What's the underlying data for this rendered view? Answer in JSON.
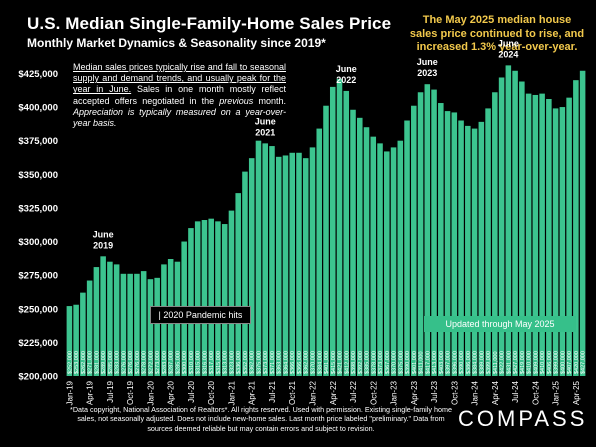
{
  "header": {
    "title": "U.S. Median Single-Family-Home Sales Price",
    "subtitle": "Monthly Market Dynamics & Seasonality since 2019*"
  },
  "callout": "The May   2025 median house sales price continued to rise, and increased 1.3% year-over-year.",
  "note": {
    "part1": "Median sales prices typically rise and fall to seasonal supply and demand trends, and usually peak for the year in June.",
    "part2": " Sales in one month mostly reflect accepted offers negotiated in the ",
    "part3": "previous",
    "part4": " month. ",
    "part5": "Appreciation is typically measured on a year-over-year basis."
  },
  "annotations": {
    "june2019": [
      "June",
      "2019"
    ],
    "june2021": [
      "June",
      "2021"
    ],
    "june2022": [
      "June",
      "2022"
    ],
    "june2023": [
      "June",
      "2023"
    ],
    "june2024": [
      "June",
      "2024"
    ],
    "pandemic": "| 2020 Pandemic hits",
    "updated": "Updated through May 2025"
  },
  "footnote": "*Data copyright, National Association of Realtors*. All rights reserved. Used with permission. Existing single-family home sales, not seasonally adjusted. Does not include new-home sales. Last month price labeled \"preliminary.\" Data from sources deemed reliable but may contain errors and subject to revision.",
  "logo": "COMPASS",
  "colors": {
    "bar": "#3cc48f",
    "background": "#000000",
    "callout": "#f2c94c"
  },
  "chart_data": {
    "type": "bar",
    "ylim": [
      200000,
      435000
    ],
    "yticks": [
      "$200,000",
      "$225,000",
      "$250,000",
      "$275,000",
      "$300,000",
      "$325,000",
      "$350,000",
      "$375,000",
      "$400,000",
      "$425,000"
    ],
    "ytick_values": [
      200000,
      225000,
      250000,
      275000,
      300000,
      325000,
      350000,
      375000,
      400000,
      425000
    ],
    "xtick_labels": [
      "Jan-19",
      "Apr-19",
      "Jul-19",
      "Oct-19",
      "Jan-20",
      "Apr-20",
      "Jul-20",
      "Oct-20",
      "Jan-21",
      "Apr-21",
      "Jul-21",
      "Oct-21",
      "Jan-22",
      "Apr-22",
      "Jul-22",
      "Oct-22",
      "Jan-23",
      "Apr-23",
      "Jul-23",
      "Oct-23",
      "Jan-24",
      "Apr-24",
      "Jul-24",
      "Oct-24",
      "Jan-25",
      "Apr-25"
    ],
    "categories": [
      "Jan-19",
      "Feb-19",
      "Mar-19",
      "Apr-19",
      "May-19",
      "Jun-19",
      "Jul-19",
      "Aug-19",
      "Sep-19",
      "Oct-19",
      "Nov-19",
      "Dec-19",
      "Jan-20",
      "Feb-20",
      "Mar-20",
      "Apr-20",
      "May-20",
      "Jun-20",
      "Jul-20",
      "Aug-20",
      "Sep-20",
      "Oct-20",
      "Nov-20",
      "Dec-20",
      "Jan-21",
      "Feb-21",
      "Mar-21",
      "Apr-21",
      "May-21",
      "Jun-21",
      "Jul-21",
      "Aug-21",
      "Sep-21",
      "Oct-21",
      "Nov-21",
      "Dec-21",
      "Jan-22",
      "Feb-22",
      "Mar-22",
      "Apr-22",
      "May-22",
      "Jun-22",
      "Jul-22",
      "Aug-22",
      "Sep-22",
      "Oct-22",
      "Nov-22",
      "Dec-22",
      "Jan-23",
      "Feb-23",
      "Mar-23",
      "Apr-23",
      "May-23",
      "Jun-23",
      "Jul-23",
      "Aug-23",
      "Sep-23",
      "Oct-23",
      "Nov-23",
      "Dec-23",
      "Jan-24",
      "Feb-24",
      "Mar-24",
      "Apr-24",
      "May-24",
      "Jun-24",
      "Jul-24",
      "Aug-24",
      "Sep-24",
      "Oct-24",
      "Nov-24",
      "Dec-24",
      "Jan-25",
      "Feb-25",
      "Mar-25",
      "Apr-25",
      "May-25"
    ],
    "values": [
      252000,
      253000,
      262000,
      271000,
      281000,
      289000,
      285000,
      283000,
      276000,
      276000,
      276000,
      278000,
      272000,
      273000,
      283000,
      287000,
      285000,
      300000,
      310000,
      315000,
      316000,
      317000,
      315000,
      313000,
      323000,
      336000,
      352000,
      362000,
      375000,
      373000,
      371000,
      363000,
      364000,
      366000,
      366000,
      362000,
      370000,
      384000,
      401000,
      415000,
      421000,
      412000,
      398000,
      392000,
      385000,
      378000,
      373000,
      367000,
      370000,
      375000,
      390000,
      401000,
      411000,
      417000,
      413000,
      403000,
      397000,
      396000,
      390000,
      386000,
      384000,
      389000,
      399000,
      411000,
      422000,
      431000,
      427000,
      419000,
      410000,
      409000,
      410000,
      406000,
      399000,
      400000,
      407000,
      420000,
      427000
    ],
    "bar_labels": [
      "$252,000",
      "$253,000",
      "$262,000",
      "$271,000",
      "$281,000",
      "$289,000",
      "$285,000",
      "$283,000",
      "$276,000",
      "$276,000",
      "$276,000",
      "$278,000",
      "$272,000",
      "$273,000",
      "$283,000",
      "$287,000",
      "$285,000",
      "$300,000",
      "$310,000",
      "$315,000",
      "$316,000",
      "$317,000",
      "$315,000",
      "$313,000",
      "$323,000",
      "$336,000",
      "$352,000",
      "$362,000",
      "$375,000",
      "$373,000",
      "$371,000",
      "$363,000",
      "$364,000",
      "$366,000",
      "$366,000",
      "$362,000",
      "$370,000",
      "$384,000",
      "$401,000",
      "$415,000",
      "$421,000",
      "$412,000",
      "$398,000",
      "$392,000",
      "$385,000",
      "$378,000",
      "$373,000",
      "$367,000",
      "$370,000",
      "$375,000",
      "$390,000",
      "$401,000",
      "$411,000",
      "$417,000",
      "$413,000",
      "$403,000",
      "$397,000",
      "$396,000",
      "$390,000",
      "$386,000",
      "$384,000",
      "$389,000",
      "$399,000",
      "$411,000",
      "$422,000",
      "$431,000",
      "$427,000",
      "$419,000",
      "$410,000",
      "$409,000",
      "$410,000",
      "$406,000",
      "$399,000",
      "$400,000",
      "$407,000",
      "$420,000",
      "$427,000"
    ]
  }
}
